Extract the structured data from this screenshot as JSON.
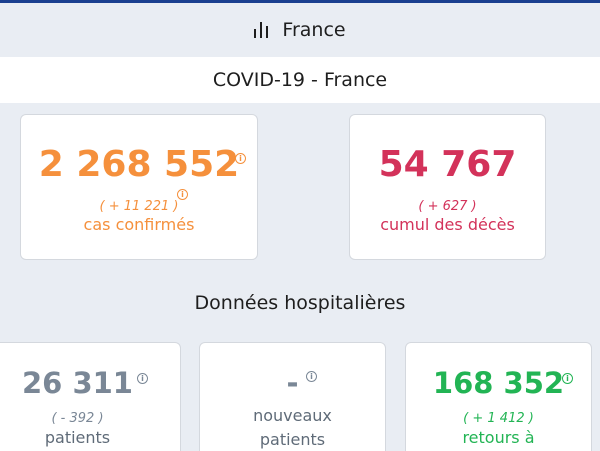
{
  "header": {
    "title": "France"
  },
  "section_main": {
    "title": "COVID-19 - France"
  },
  "cards_top": [
    {
      "value": "2 268 552",
      "delta": "( + 11 221 )",
      "label": "cas confirmés",
      "color": "#f5903c"
    },
    {
      "value": "54 767",
      "delta": "( + 627 )",
      "label": "cumul des décès",
      "color": "#d3325a"
    }
  ],
  "section_hosp": {
    "title": "Données hospitalières"
  },
  "cards_hosp": [
    {
      "value": "26 311",
      "delta": "( - 392 )",
      "label": "patients",
      "color": "#7a8796"
    },
    {
      "value": "-",
      "label_line1": "nouveaux",
      "label_line2": "patients",
      "color": "#7a8796"
    },
    {
      "value": "168 352",
      "delta": "( + 1 412 )",
      "label": "retours à",
      "color": "#22b454"
    }
  ],
  "icons": {
    "header": "bar-chart-icon",
    "info": "info-icon"
  }
}
